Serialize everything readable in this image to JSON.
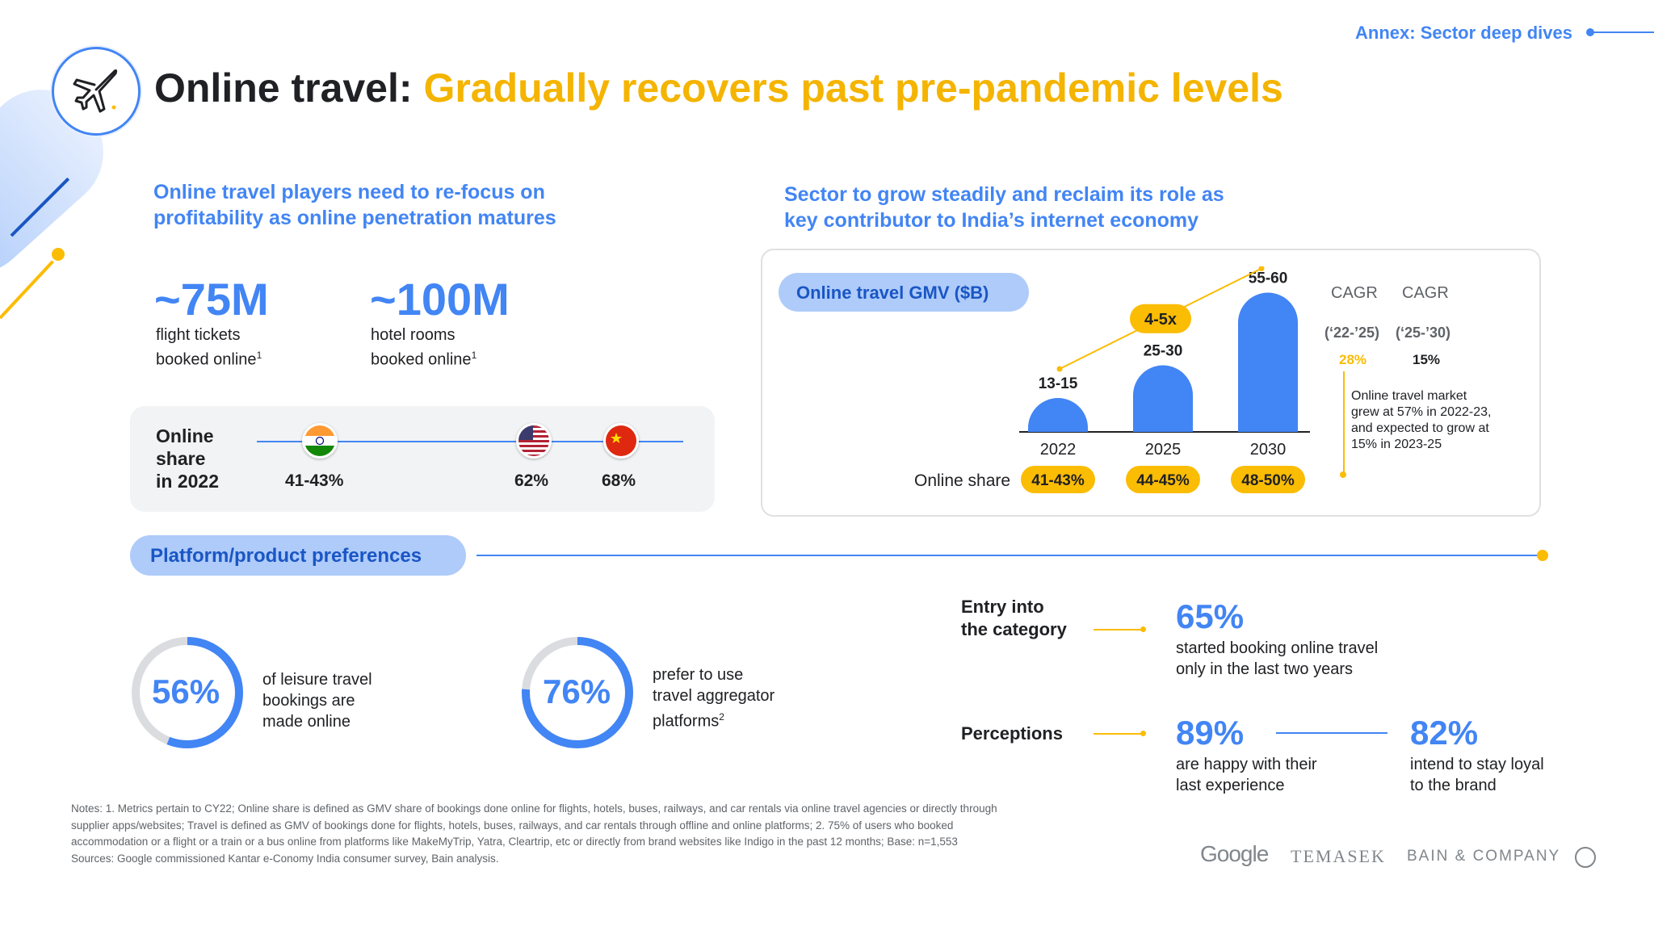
{
  "header": {
    "annex": "Annex: Sector deep dives",
    "title_prefix": "Online travel:",
    "title_highlight": "Gradually recovers past pre-pandemic levels"
  },
  "left": {
    "subheading_line1": "Online travel players need to re-focus on",
    "subheading_line2": "profitability as online penetration matures",
    "metric1": {
      "value": "~75M",
      "caption_line1": "flight tickets",
      "caption_line2": "booked online",
      "sup": "1"
    },
    "metric2": {
      "value": "~100M",
      "caption_line1": "hotel rooms",
      "caption_line2": "booked online",
      "sup": "1"
    },
    "online_share": {
      "label_line1": "Online",
      "label_line2": "share",
      "label_line3": "in 2022",
      "countries": [
        {
          "flag": "india-flag-icon",
          "value": "41-43%"
        },
        {
          "flag": "usa-flag-icon",
          "value": "62%"
        },
        {
          "flag": "china-flag-icon",
          "value": "68%"
        }
      ]
    }
  },
  "right": {
    "subheading_line1": "Sector to grow steadily and reclaim its role as",
    "subheading_line2": "key contributor to India’s internet economy",
    "chart_title": "Online travel GMV ($B)",
    "growth_badge": "4-5x",
    "online_share_label": "Online share",
    "cagr": {
      "header1": "CAGR",
      "header2": "CAGR",
      "period1": "(‘22-’25)",
      "period2": "(‘25-’30)",
      "value1": "28%",
      "value2": "15%",
      "note_line1": "Online travel market",
      "note_line2": "grew at 57% in 2022-23,",
      "note_line3": "and expected to grow at",
      "note_line4": "15% in 2023-25"
    }
  },
  "chart_data": {
    "type": "bar",
    "title": "Online travel GMV ($B)",
    "categories": [
      "2022",
      "2025",
      "2030"
    ],
    "values": [
      14,
      27.5,
      57.5
    ],
    "value_labels": [
      "13-15",
      "25-30",
      "55-60"
    ],
    "online_share": [
      "41-43%",
      "44-45%",
      "48-50%"
    ],
    "ylim": [
      0,
      60
    ],
    "colors": {
      "bar": "#4285f4",
      "badge": "#fbbc04",
      "trend": "#fbbc04"
    }
  },
  "platform": {
    "title": "Platform/product preferences",
    "ring1": {
      "value": "56%",
      "fraction": 0.56,
      "caption_line1": "of leisure travel",
      "caption_line2": "bookings are",
      "caption_line3": "made online"
    },
    "ring2": {
      "value": "76%",
      "fraction": 0.76,
      "caption_line1": "prefer to use",
      "caption_line2": "travel aggregator",
      "caption_line3": "platforms",
      "sup": "2"
    },
    "entry_label_line1": "Entry into",
    "entry_label_line2": "the category",
    "entry_value": "65%",
    "entry_caption_line1": "started booking online travel",
    "entry_caption_line2": "only in the last two years",
    "perceptions_label": "Perceptions",
    "happy_value": "89%",
    "happy_caption_line1": "are happy with their",
    "happy_caption_line2": "last experience",
    "loyal_value": "82%",
    "loyal_caption_line1": "intend to stay loyal",
    "loyal_caption_line2": "to the brand"
  },
  "notes": {
    "line1": "Notes: 1. Metrics pertain to CY22; Online share is defined as GMV share of bookings done online for flights, hotels, buses, railways, and car rentals via online travel agencies or directly through",
    "line2": "supplier apps/websites; Travel is defined as GMV of bookings done for flights, hotels, buses, railways, and car rentals through offline and online platforms; 2. 75% of users who booked",
    "line3": "accommodation or a flight or a train or a bus online from platforms like MakeMyTrip, Yatra, Cleartrip, etc or directly from brand websites like Indigo in the past 12 months; Base: n=1,553",
    "line4": "Sources: Google commissioned Kantar e-Conomy India consumer survey, Bain analysis."
  },
  "logos": {
    "google": "Google",
    "temasek": "TEMASEK",
    "bain": "BAIN & COMPANY"
  }
}
